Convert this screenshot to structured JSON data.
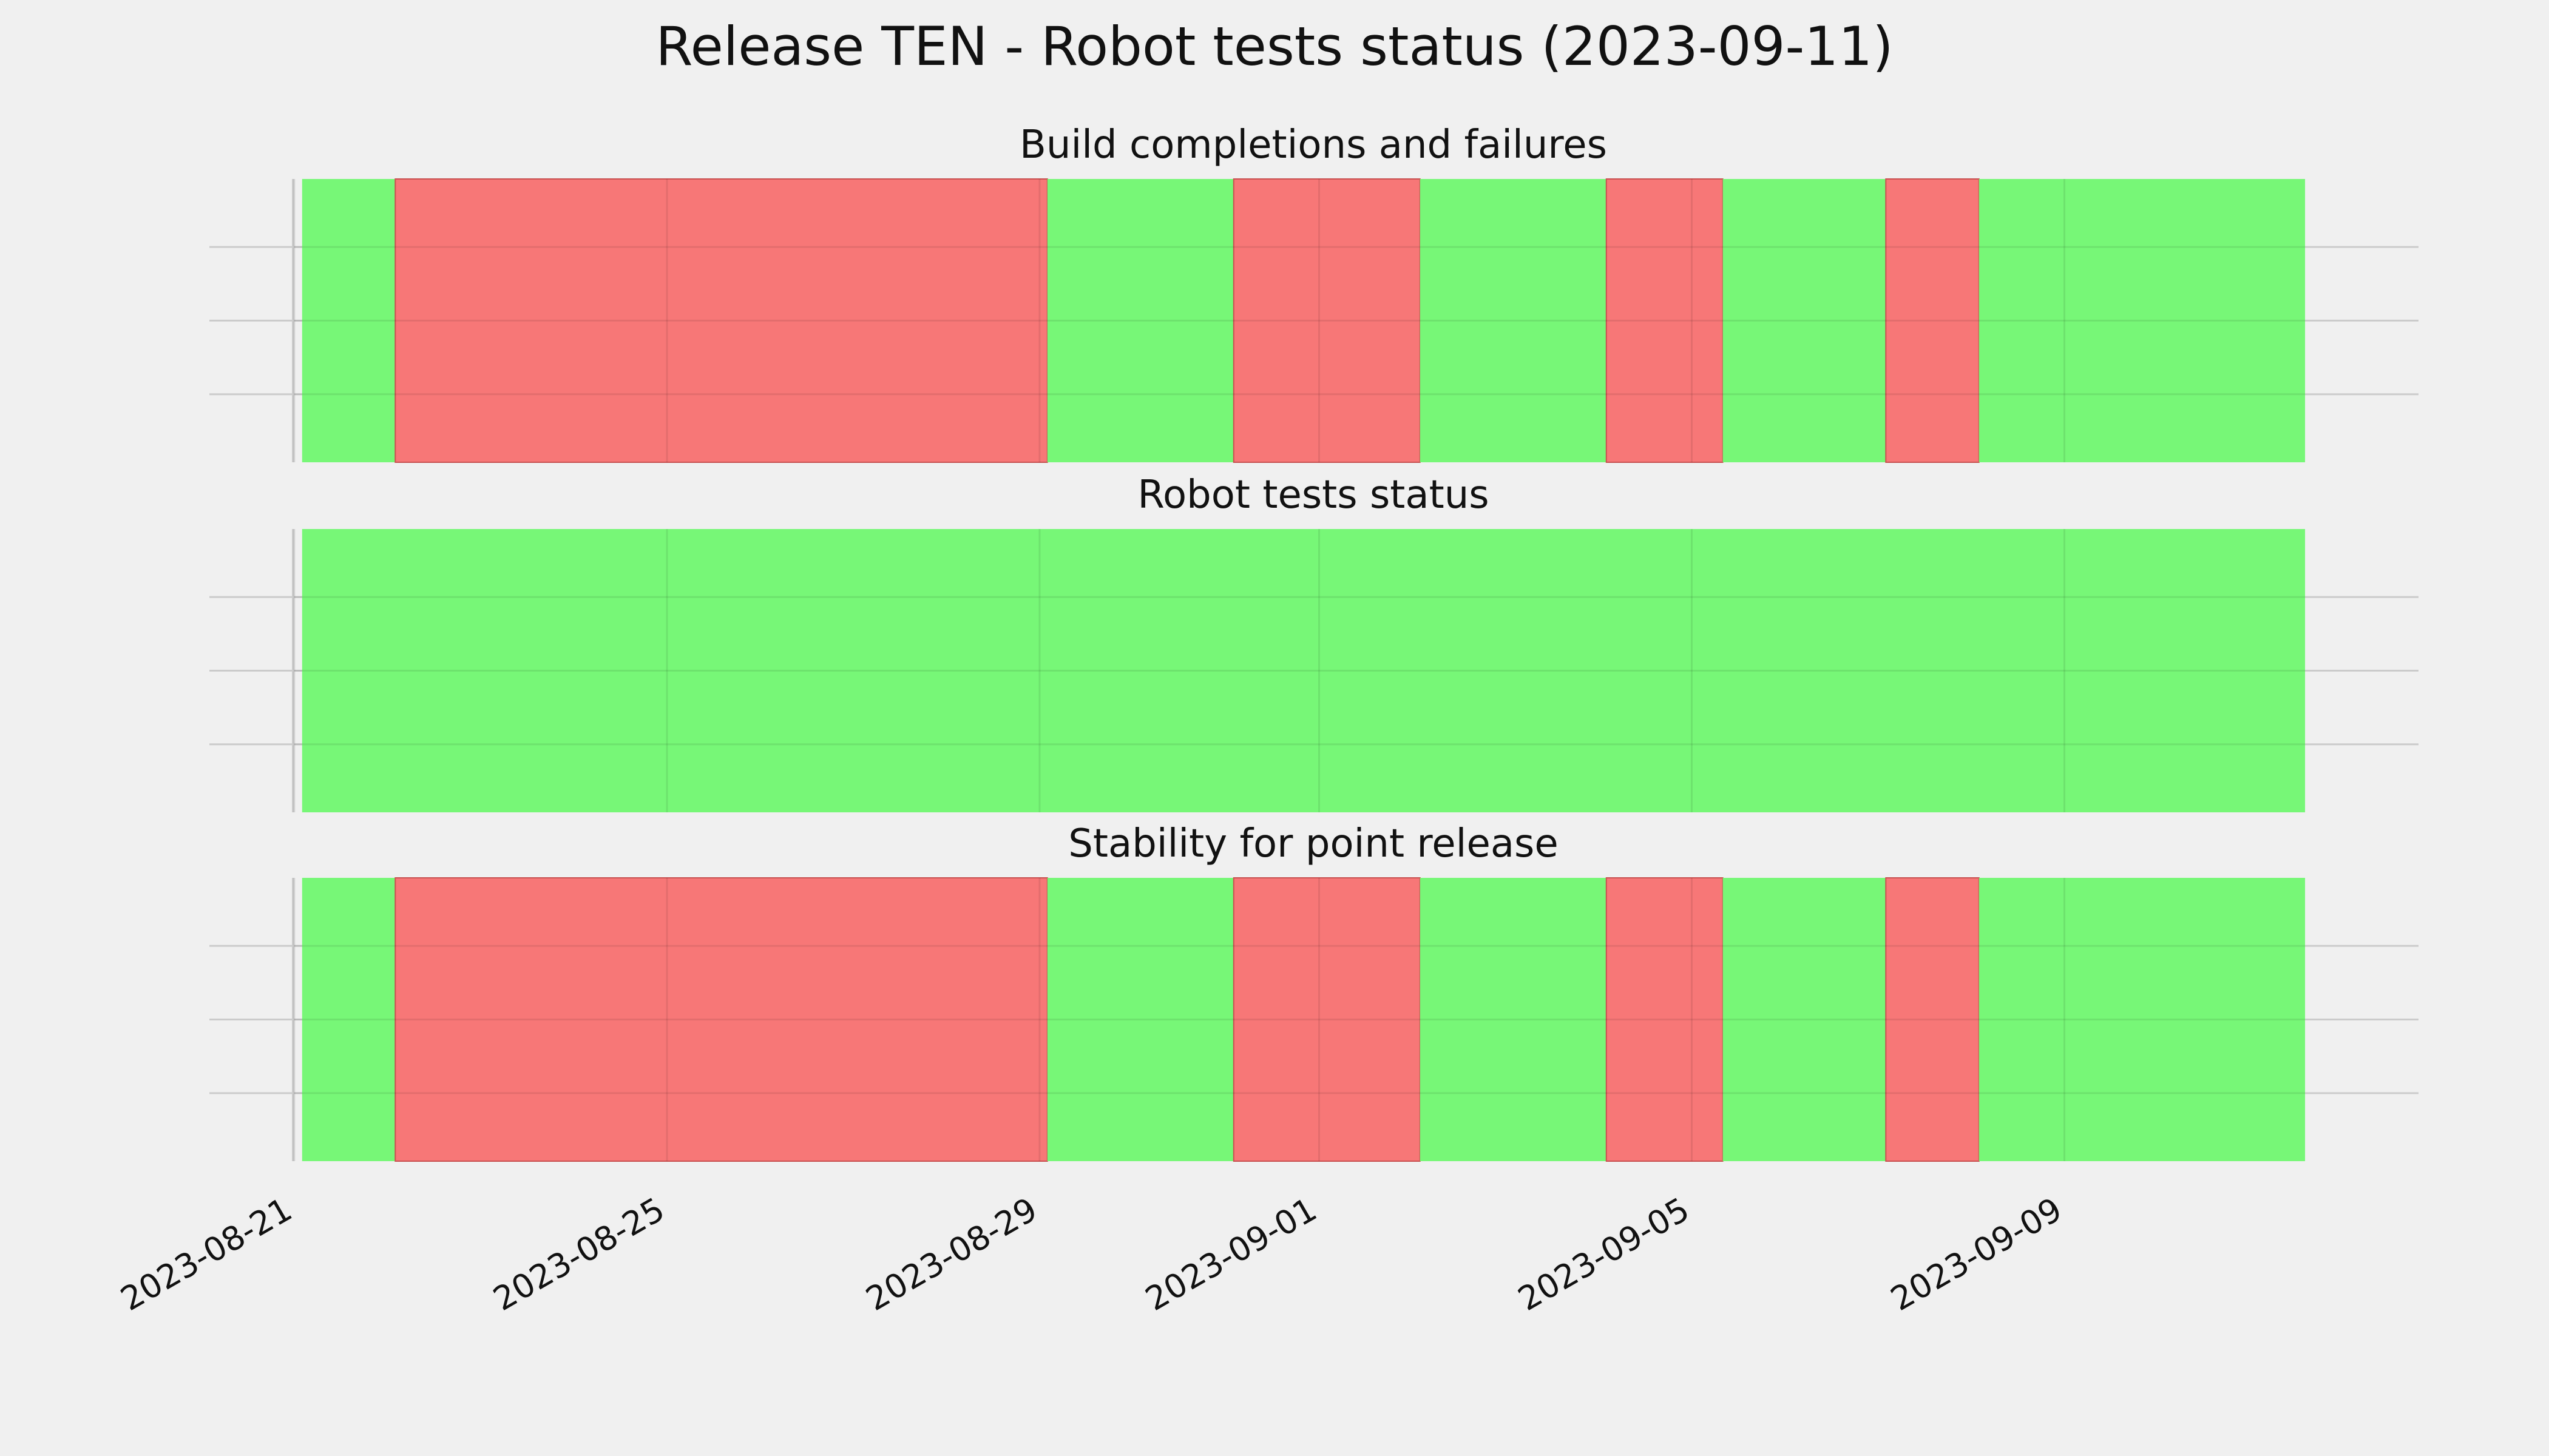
{
  "title": "Release TEN - Robot tests status (2023-09-11)",
  "colors": {
    "background": "#f0f0f0",
    "pass": "#77f777",
    "fail": "#f77777",
    "grid": "#cbcbcb",
    "text": "#111111"
  },
  "chart_data": {
    "type": "timeline",
    "title": "Release TEN - Robot tests status (2023-09-11)",
    "x_axis": {
      "type": "date",
      "range": [
        "2023-08-21",
        "2023-09-12"
      ],
      "ticks": [
        "2023-08-21",
        "2023-08-25",
        "2023-08-29",
        "2023-09-01",
        "2023-09-05",
        "2023-09-09"
      ],
      "tick_labels": [
        "2023-08-21",
        "2023-08-25",
        "2023-08-29",
        "2023-09-01",
        "2023-09-05",
        "2023-09-09"
      ]
    },
    "y_axis": {
      "tick_labels_visible": false
    },
    "grid": true,
    "legend": "none",
    "panels": [
      {
        "title": "Build completions and failures",
        "segments": [
          {
            "start": "2023-08-21 02:00",
            "end": "2023-08-22 02:00",
            "status": "pass"
          },
          {
            "start": "2023-08-22 02:00",
            "end": "2023-08-29 02:00",
            "status": "fail"
          },
          {
            "start": "2023-08-29 02:00",
            "end": "2023-08-31 02:00",
            "status": "pass"
          },
          {
            "start": "2023-08-31 02:00",
            "end": "2023-09-02 02:00",
            "status": "fail"
          },
          {
            "start": "2023-09-02 02:00",
            "end": "2023-09-04 02:00",
            "status": "pass"
          },
          {
            "start": "2023-09-04 02:00",
            "end": "2023-09-05 08:00",
            "status": "fail"
          },
          {
            "start": "2023-09-05 08:00",
            "end": "2023-09-07 02:00",
            "status": "pass"
          },
          {
            "start": "2023-09-07 02:00",
            "end": "2023-09-08 02:00",
            "status": "fail"
          },
          {
            "start": "2023-09-08 02:00",
            "end": "2023-09-11 14:00",
            "status": "pass"
          }
        ]
      },
      {
        "title": "Robot tests status",
        "segments": [
          {
            "start": "2023-08-21 02:00",
            "end": "2023-09-11 14:00",
            "status": "pass"
          }
        ]
      },
      {
        "title": "Stability for point release",
        "segments": [
          {
            "start": "2023-08-21 02:00",
            "end": "2023-08-22 02:00",
            "status": "pass"
          },
          {
            "start": "2023-08-22 02:00",
            "end": "2023-08-29 02:00",
            "status": "fail"
          },
          {
            "start": "2023-08-29 02:00",
            "end": "2023-08-31 02:00",
            "status": "pass"
          },
          {
            "start": "2023-08-31 02:00",
            "end": "2023-09-02 02:00",
            "status": "fail"
          },
          {
            "start": "2023-09-02 02:00",
            "end": "2023-09-04 02:00",
            "status": "pass"
          },
          {
            "start": "2023-09-04 02:00",
            "end": "2023-09-05 08:00",
            "status": "fail"
          },
          {
            "start": "2023-09-05 08:00",
            "end": "2023-09-07 02:00",
            "status": "pass"
          },
          {
            "start": "2023-09-07 02:00",
            "end": "2023-09-08 02:00",
            "status": "fail"
          },
          {
            "start": "2023-09-08 02:00",
            "end": "2023-09-11 14:00",
            "status": "pass"
          }
        ]
      }
    ]
  }
}
